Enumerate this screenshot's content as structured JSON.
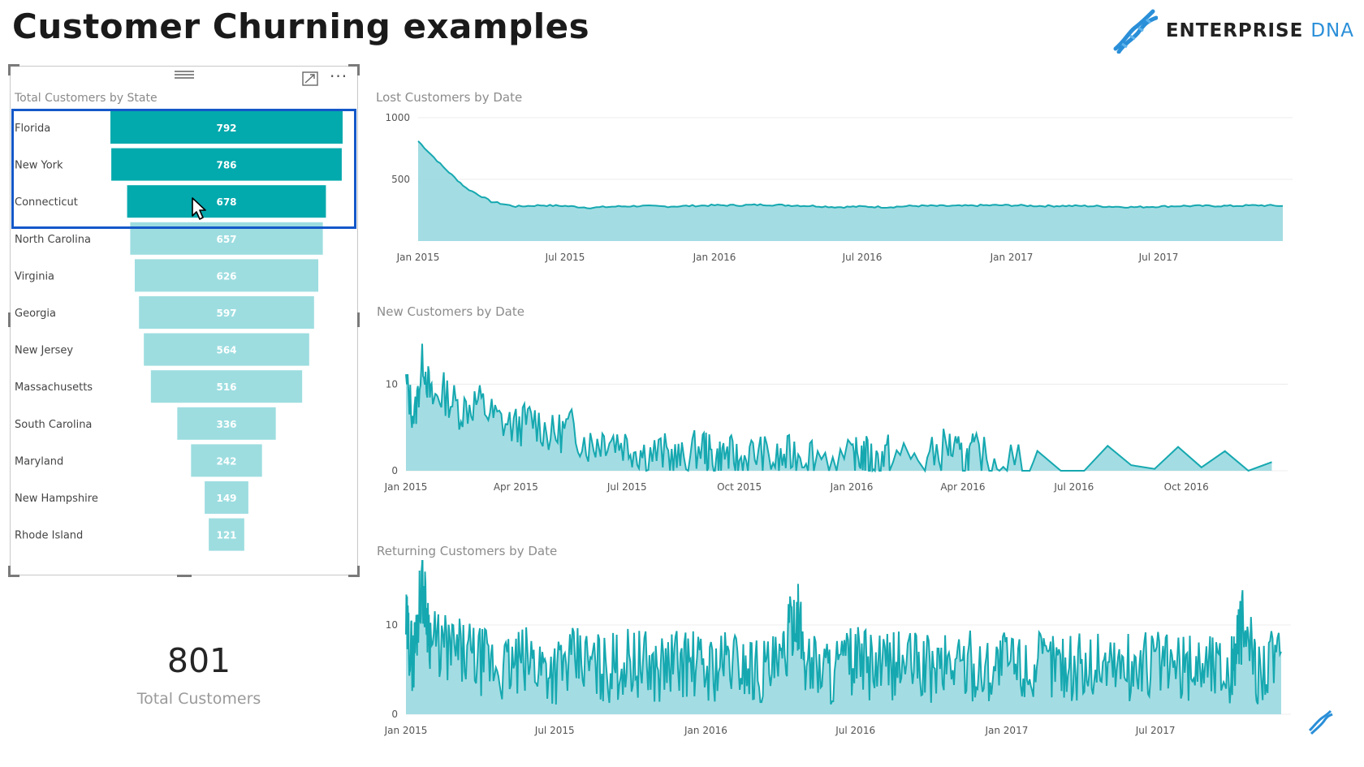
{
  "page": {
    "title": "Customer Churning examples"
  },
  "logo": {
    "brand_main": "ENTERPRISE",
    "brand_accent": "DNA",
    "icon": "dna-helix-icon"
  },
  "colors": {
    "accent_dark": "#02a9ad",
    "accent_light": "#9ddde0",
    "area_fill": "#9edbe1",
    "line": "#16a8b0",
    "selection": "#1458c9"
  },
  "funnel": {
    "title": "Total Customers by State",
    "icons": {
      "drag": "drag-handle-icon",
      "focus": "focus-mode-icon",
      "more": "more-options-icon"
    },
    "selected_count": 3,
    "chart_data": {
      "type": "bar",
      "title": "Total Customers by State",
      "categories": [
        "Florida",
        "New York",
        "Connecticut",
        "North Carolina",
        "Virginia",
        "Georgia",
        "New Jersey",
        "Massachusetts",
        "South Carolina",
        "Maryland",
        "New Hampshire",
        "Rhode Island"
      ],
      "values": [
        792,
        786,
        678,
        657,
        626,
        597,
        564,
        516,
        336,
        242,
        149,
        121
      ],
      "highlighted": [
        "Florida",
        "New York",
        "Connecticut"
      ]
    }
  },
  "card": {
    "value": "801",
    "label": "Total Customers"
  },
  "charts": [
    {
      "title": "Lost Customers by Date",
      "chart_data": {
        "type": "area",
        "title": "Lost Customers by Date",
        "x_ticks": [
          "Jan 2015",
          "Jul 2015",
          "Jan 2016",
          "Jul 2016",
          "Jan 2017",
          "Jul 2017"
        ],
        "y_ticks": [
          500,
          1000
        ],
        "ylim": [
          0,
          1000
        ],
        "xlim": [
          "2015-01-01",
          "2017-12-01"
        ],
        "series": [
          {
            "x": [
              "2015-01-01",
              "2015-02-01",
              "2015-03-01",
              "2015-04-01",
              "2015-05-01",
              "2015-06-01",
              "2015-07-01",
              "2015-08-01",
              "2015-09-01",
              "2015-10-01",
              "2015-11-01",
              "2015-12-01",
              "2016-01-01",
              "2016-02-01",
              "2016-03-01",
              "2016-04-01",
              "2016-05-01",
              "2016-06-01",
              "2016-07-01",
              "2016-08-01",
              "2016-09-01",
              "2016-10-01",
              "2016-11-01",
              "2016-12-01",
              "2017-01-01",
              "2017-02-01",
              "2017-03-01",
              "2017-04-01",
              "2017-05-01",
              "2017-06-01",
              "2017-07-01",
              "2017-08-01",
              "2017-09-01",
              "2017-10-01",
              "2017-11-01",
              "2017-12-01"
            ],
            "values": [
              810,
              600,
              430,
              320,
              280,
              290,
              285,
              270,
              280,
              285,
              280,
              285,
              290,
              290,
              295,
              290,
              285,
              275,
              280,
              275,
              285,
              285,
              285,
              290,
              290,
              285,
              285,
              285,
              280,
              275,
              280,
              285,
              285,
              285,
              290,
              285
            ]
          }
        ]
      }
    },
    {
      "title": "New Customers by Date",
      "chart_data": {
        "type": "area",
        "title": "New Customers by Date",
        "x_ticks": [
          "Jan 2015",
          "Apr 2015",
          "Jul 2015",
          "Oct 2015",
          "Jan 2016",
          "Apr 2016",
          "Jul 2016",
          "Oct 2016"
        ],
        "y_ticks": [
          0,
          10
        ],
        "ylim": [
          0,
          15
        ],
        "xlim": [
          "2015-01-01",
          "2016-12-15"
        ],
        "series": [
          {
            "x": [
              "2015-01-01",
              "2015-01-08",
              "2015-01-15",
              "2015-01-22",
              "2015-02-01",
              "2015-02-15",
              "2015-03-01",
              "2015-03-15",
              "2015-04-01",
              "2015-04-15",
              "2015-05-01",
              "2015-05-15",
              "2015-06-01",
              "2015-06-15",
              "2015-07-01",
              "2015-07-15",
              "2015-08-01",
              "2015-08-15",
              "2015-09-01",
              "2015-09-10",
              "2015-09-20",
              "2015-10-01",
              "2015-10-15",
              "2015-11-01",
              "2015-11-15",
              "2015-12-01",
              "2016-01-01",
              "2016-01-10",
              "2016-01-20",
              "2016-02-01",
              "2016-03-01",
              "2016-03-20",
              "2016-04-01",
              "2016-04-10",
              "2016-05-01",
              "2016-06-01",
              "2016-12-10"
            ],
            "values": [
              10,
              6,
              13,
              8,
              9,
              7,
              8,
              6,
              5,
              6,
              4,
              5,
              3,
              4,
              3,
              2,
              2,
              1,
              3,
              1,
              2,
              1,
              2,
              1,
              2,
              2,
              1,
              2,
              1,
              2,
              1,
              3,
              1,
              2,
              1,
              1,
              1
            ]
          }
        ]
      }
    },
    {
      "title": "Returning Customers by Date",
      "chart_data": {
        "type": "area",
        "title": "Returning Customers by Date",
        "x_ticks": [
          "Jan 2015",
          "Jul 2015",
          "Jan 2016",
          "Jul 2016",
          "Jan 2017",
          "Jul 2017"
        ],
        "y_ticks": [
          0,
          10
        ],
        "ylim": [
          0,
          15
        ],
        "xlim": [
          "2015-01-01",
          "2017-12-01"
        ],
        "series": [
          {
            "x": [
              "2015-01-01",
              "2015-01-10",
              "2015-01-20",
              "2015-02-01",
              "2015-03-01",
              "2015-04-01",
              "2015-05-01",
              "2015-06-01",
              "2015-07-01",
              "2015-08-01",
              "2015-09-01",
              "2015-10-01",
              "2015-11-01",
              "2015-12-01",
              "2016-01-01",
              "2016-02-01",
              "2016-03-01",
              "2016-04-01",
              "2016-04-20",
              "2016-05-01",
              "2016-06-01",
              "2016-07-01",
              "2016-08-01",
              "2016-09-01",
              "2016-10-01",
              "2016-11-01",
              "2016-12-01",
              "2017-01-01",
              "2017-02-01",
              "2017-03-01",
              "2017-04-01",
              "2017-05-01",
              "2017-06-01",
              "2017-07-01",
              "2017-08-01",
              "2017-09-01",
              "2017-10-01",
              "2017-10-15",
              "2017-11-01",
              "2017-12-01"
            ],
            "values": [
              10,
              6,
              15,
              8,
              7,
              6,
              5,
              6,
              5,
              6,
              5,
              6,
              5,
              6,
              5,
              6,
              5,
              5,
              12,
              6,
              5,
              6,
              5,
              6,
              5,
              6,
              5,
              6,
              5,
              6,
              5,
              6,
              5,
              6,
              5,
              6,
              5,
              10,
              5,
              7
            ]
          }
        ]
      }
    }
  ]
}
